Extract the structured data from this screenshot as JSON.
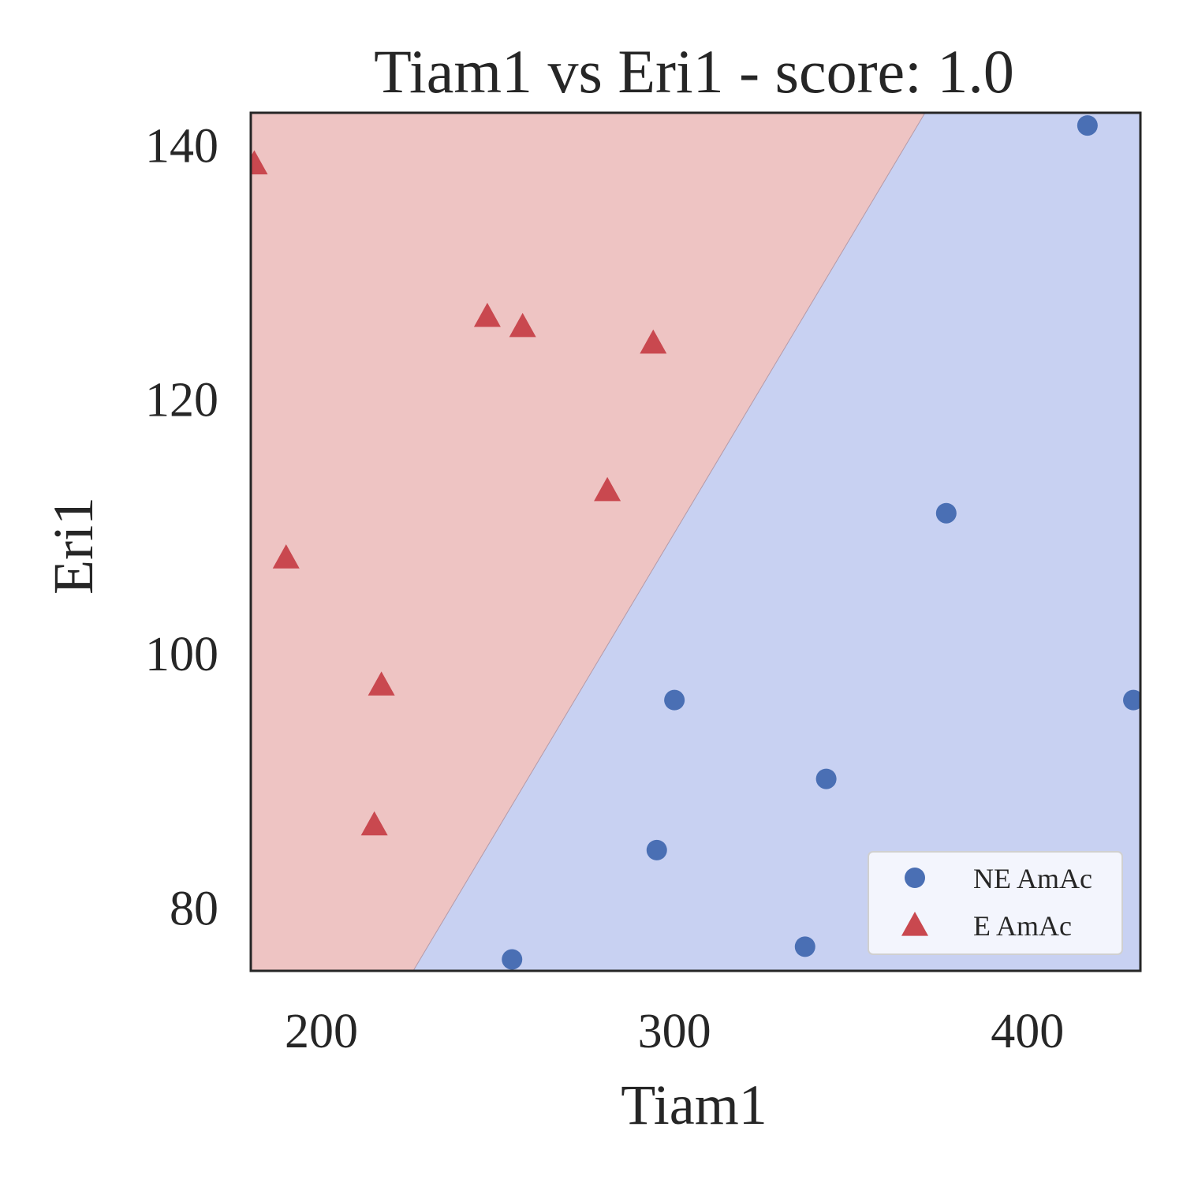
{
  "chart_data": {
    "type": "scatter",
    "title": "Tiam1 vs Eri1 - score: 1.0",
    "xlabel": "Tiam1",
    "ylabel": "Eri1",
    "xlim": [
      180,
      432
    ],
    "ylim": [
      75,
      142.5
    ],
    "xticks": [
      200,
      300,
      400
    ],
    "yticks": [
      80,
      100,
      120,
      140
    ],
    "grid": false,
    "legend_position": "bottom-right",
    "decision_boundary": {
      "line": [
        [
          226,
          75
        ],
        [
          371,
          142.5
        ]
      ],
      "regions": [
        {
          "class": "E AmAc",
          "side": "upper-left",
          "color": "#eec4c3"
        },
        {
          "class": "NE AmAc",
          "side": "lower-right",
          "color": "#c8d1f2"
        }
      ]
    },
    "series": [
      {
        "name": "NE AmAc",
        "marker": "circle",
        "color": "#4a6fb4",
        "points": [
          [
            417,
            141.5
          ],
          [
            377,
            111
          ],
          [
            300,
            96.3
          ],
          [
            430,
            96.3
          ],
          [
            343,
            90.1
          ],
          [
            295,
            84.5
          ],
          [
            337,
            76.9
          ],
          [
            254,
            75.9
          ]
        ]
      },
      {
        "name": "E AmAc",
        "marker": "triangle",
        "color": "#c9484f",
        "points": [
          [
            181,
            138.5
          ],
          [
            190,
            107.5
          ],
          [
            247,
            126.5
          ],
          [
            257,
            125.7
          ],
          [
            294,
            124.4
          ],
          [
            281,
            112.8
          ],
          [
            217,
            97.5
          ],
          [
            215,
            86.5
          ]
        ]
      }
    ]
  }
}
